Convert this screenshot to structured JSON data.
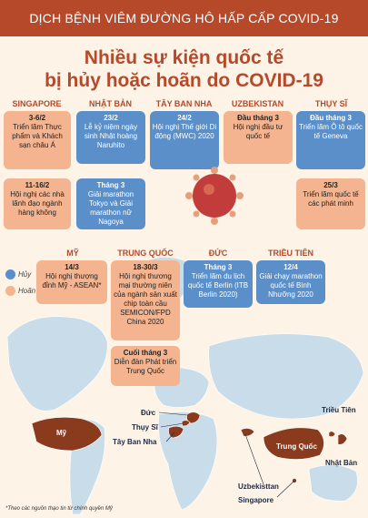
{
  "header": {
    "title": "DỊCH BỆNH VIÊM ĐƯỜNG HÔ HẤP CẤP COVID-19"
  },
  "main_title": {
    "line1": "Nhiều sự kiện quốc tế",
    "line2": "bị hủy hoặc hoãn do COVID-19"
  },
  "legend": {
    "cancel": "Hủy",
    "postpone": "Hoãn",
    "cancel_color": "#5b8fc9",
    "postpone_color": "#f4b48f"
  },
  "columns_top": [
    {
      "name": "SINGAPORE",
      "events": [
        {
          "date": "3-6/2",
          "text": "Triển lãm Thực phẩm và Khách sạn châu Á",
          "status": "postpone"
        },
        {
          "date": "11-16/2",
          "text": "Hội nghị các nhà lãnh đạo ngành hàng không",
          "status": "postpone"
        }
      ]
    },
    {
      "name": "NHẬT BẢN",
      "events": [
        {
          "date": "23/2",
          "text": "Lễ kỷ niệm ngày sinh Nhật hoàng Naruhito",
          "status": "cancel"
        },
        {
          "date": "Tháng 3",
          "text": "Giải marathon Tokyo và Giải marathon nữ Nagoya",
          "status": "cancel"
        }
      ]
    },
    {
      "name": "TÂY BAN NHA",
      "events": [
        {
          "date": "24/2",
          "text": "Hội nghị Thế giới Di động (MWC) 2020",
          "status": "cancel"
        }
      ]
    },
    {
      "name": "UZBEKISTAN",
      "events": [
        {
          "date": "Đầu tháng 3",
          "text": "Hội nghị đầu tư quốc tế",
          "status": "postpone"
        }
      ]
    },
    {
      "name": "THỤY SĨ",
      "events": [
        {
          "date": "Đầu tháng 3",
          "text": "Triển lãm Ô tô quốc tế Geneva",
          "status": "cancel"
        },
        {
          "date": "25/3",
          "text": "Triển lãm quốc tế các phát minh",
          "status": "postpone"
        }
      ]
    }
  ],
  "columns_mid": [
    {
      "name": "MỸ",
      "events": [
        {
          "date": "14/3",
          "text": "Hội nghị thượng đỉnh Mỹ - ASEAN*",
          "status": "postpone"
        }
      ]
    },
    {
      "name": "TRUNG QUỐC",
      "events": [
        {
          "date": "18-30/3",
          "text": "Hội nghị thương mại thường niên của ngành sản xuất chip toàn cầu SEMICON/FPD China 2020",
          "status": "postpone"
        },
        {
          "date": "Cuối tháng 3",
          "text": "Diễn đàn Phát triển Trung Quốc",
          "status": "postpone"
        }
      ]
    },
    {
      "name": "ĐỨC",
      "events": [
        {
          "date": "Tháng 3",
          "text": "Triển lãm du lịch quốc tế Berlin (ITB Berlin 2020)",
          "status": "cancel"
        }
      ]
    },
    {
      "name": "TRIỀU TIÊN",
      "events": [
        {
          "date": "12/4",
          "text": "Giải chạy marathon quốc tế Bình Nhưỡng 2020",
          "status": "cancel"
        }
      ]
    }
  ],
  "map_labels": {
    "duc": "Đức",
    "thuy_si": "Thụy Sĩ",
    "tay_ban_nha": "Tây Ban Nha",
    "my": "Mỹ",
    "trung_quoc": "Trung Quốc",
    "trieu_tien": "Triều Tiên",
    "nhat_ban": "Nhật Bản",
    "uzbekistan": "Uzbekisttan",
    "singapore": "Singapore"
  },
  "footnote": "*Theo các nguồn thạo tin từ chính quyền Mỹ"
}
